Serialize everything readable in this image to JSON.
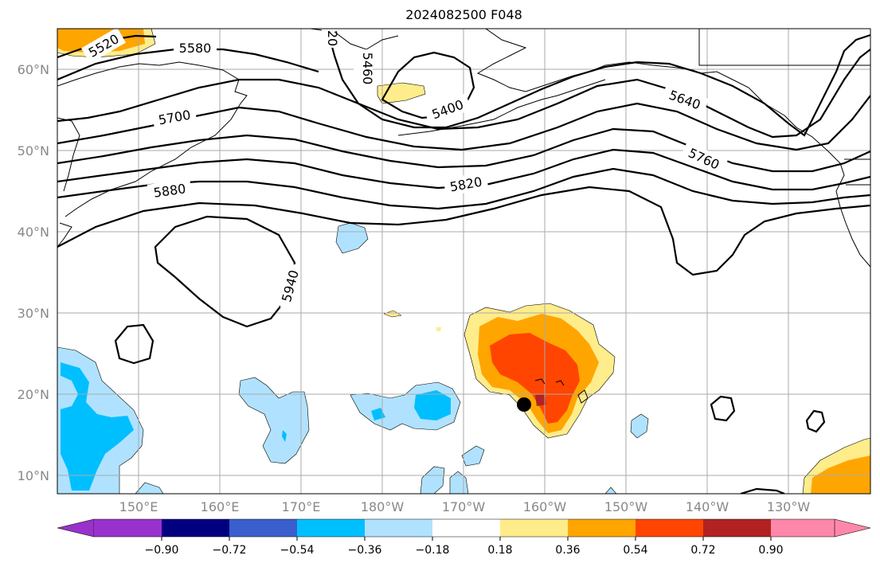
{
  "title": "2024082500 F048",
  "lat_labels": [
    "60°N",
    "50°N",
    "40°N",
    "30°N",
    "20°N",
    "10°N"
  ],
  "lon_labels": [
    "150°E",
    "160°E",
    "170°E",
    "180°W",
    "170°W",
    "160°W",
    "150°W",
    "140°W",
    "130°W"
  ],
  "contour_labels": [
    "5520",
    "5580",
    "5460",
    "5400",
    "5640",
    "5700",
    "5760",
    "5820",
    "5880",
    "5940",
    "20"
  ],
  "colorbar": {
    "ticks": [
      "−0.90",
      "−0.72",
      "−0.54",
      "−0.36",
      "−0.18",
      "0.18",
      "0.36",
      "0.54",
      "0.72",
      "0.90"
    ],
    "colors": [
      "#9932cc",
      "#000080",
      "#3a5fcd",
      "#00bfff",
      "#b0e2ff",
      "#ffffff",
      "#ffec8b",
      "#ffa500",
      "#ff4500",
      "#b22222",
      "#ff88aa"
    ]
  },
  "colors": {
    "light_yellow": "#ffec8b",
    "orange": "#ffa500",
    "red_orange": "#ff4500",
    "dark_red": "#b22222",
    "light_blue": "#b0e2ff",
    "deep_sky_blue": "#00bfff",
    "grid": "#aaaaaa"
  }
}
